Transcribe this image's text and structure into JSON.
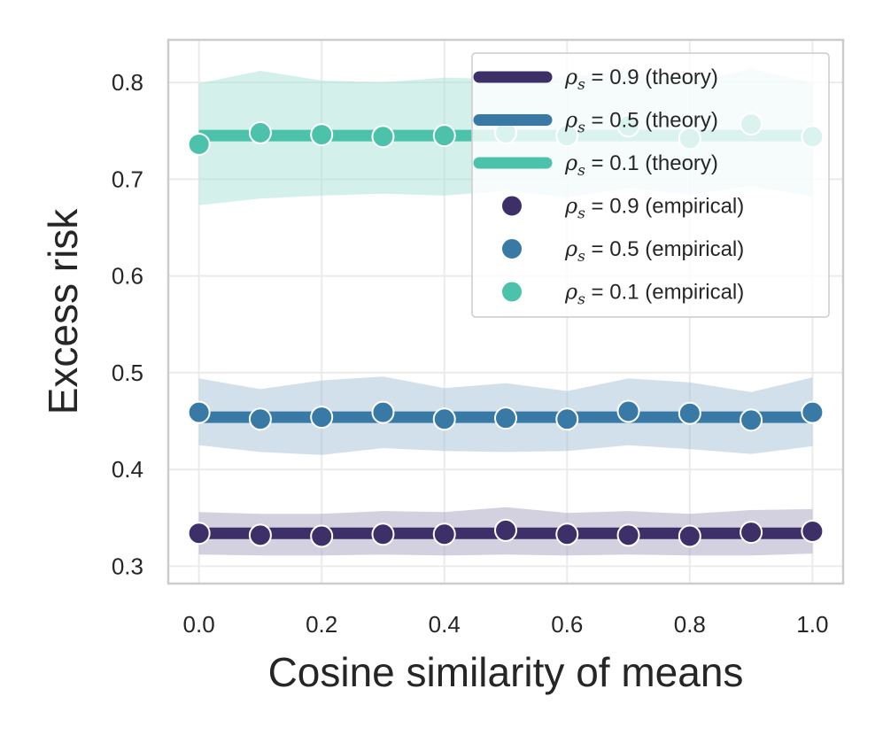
{
  "chart_data": {
    "type": "line",
    "xlabel": "Cosine similarity of means",
    "ylabel": "Excess risk",
    "xlim": [
      -0.05,
      1.05
    ],
    "ylim": [
      0.282,
      0.844
    ],
    "xticks": [
      0.0,
      0.2,
      0.4,
      0.6,
      0.8,
      1.0
    ],
    "xtick_labels": [
      "0.0",
      "0.2",
      "0.4",
      "0.6",
      "0.8",
      "1.0"
    ],
    "yticks": [
      0.3,
      0.4,
      0.5,
      0.6,
      0.7,
      0.8
    ],
    "ytick_labels": [
      "0.3",
      "0.4",
      "0.5",
      "0.6",
      "0.7",
      "0.8"
    ],
    "grid": true,
    "legend_position": "top-right",
    "x": [
      0.0,
      0.1,
      0.2,
      0.3,
      0.4,
      0.5,
      0.6,
      0.7,
      0.8,
      0.9,
      1.0
    ],
    "series": [
      {
        "rho": "0.9",
        "theory_label": "(theory)",
        "empirical_label": "(empirical)",
        "color": "#3d3069",
        "band_color": "#a8a2c0",
        "theory": 0.334,
        "empirical": [
          0.334,
          0.332,
          0.331,
          0.333,
          0.333,
          0.337,
          0.333,
          0.332,
          0.331,
          0.335,
          0.336
        ],
        "lower": [
          0.312,
          0.311,
          0.311,
          0.312,
          0.311,
          0.312,
          0.311,
          0.312,
          0.311,
          0.311,
          0.313
        ],
        "upper": [
          0.356,
          0.354,
          0.354,
          0.357,
          0.356,
          0.361,
          0.355,
          0.357,
          0.354,
          0.358,
          0.359
        ]
      },
      {
        "rho": "0.5",
        "theory_label": "(theory)",
        "empirical_label": "(empirical)",
        "color": "#3879a6",
        "band_color": "#a4c1d6",
        "theory": 0.454,
        "empirical": [
          0.459,
          0.452,
          0.454,
          0.459,
          0.452,
          0.453,
          0.452,
          0.46,
          0.458,
          0.451,
          0.459
        ],
        "lower": [
          0.425,
          0.418,
          0.415,
          0.422,
          0.419,
          0.418,
          0.419,
          0.425,
          0.421,
          0.416,
          0.424
        ],
        "upper": [
          0.494,
          0.483,
          0.492,
          0.496,
          0.484,
          0.489,
          0.481,
          0.494,
          0.49,
          0.48,
          0.495
        ]
      },
      {
        "rho": "0.1",
        "theory_label": "(theory)",
        "empirical_label": "(empirical)",
        "color": "#4bc2a9",
        "band_color": "#a7e3d5",
        "theory": 0.745,
        "empirical": [
          0.736,
          0.748,
          0.746,
          0.744,
          0.745,
          0.748,
          0.745,
          0.755,
          0.742,
          0.757,
          0.744
        ],
        "lower": [
          0.673,
          0.68,
          0.683,
          0.685,
          0.683,
          0.688,
          0.681,
          0.691,
          0.684,
          0.693,
          0.682
        ],
        "upper": [
          0.799,
          0.812,
          0.802,
          0.8,
          0.805,
          0.803,
          0.806,
          0.812,
          0.8,
          0.814,
          0.8
        ]
      }
    ]
  }
}
